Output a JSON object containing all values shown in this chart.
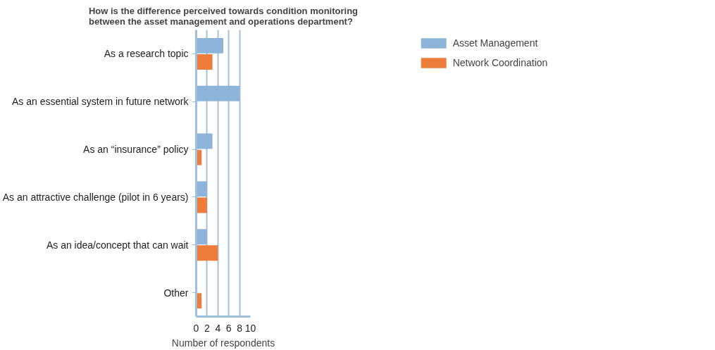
{
  "chart_data": {
    "type": "bar",
    "orientation": "horizontal",
    "title": "How is the difference perceived towards condition monitoring\nbetween the asset management and operations department?",
    "xlabel": "Number of respondents",
    "categories": [
      "As a research topic",
      "As an essential system in future network",
      "As an “insurance” policy",
      "As an attractive challenge (pilot in 6 years)",
      "As an idea/concept that can wait",
      "Other"
    ],
    "series": [
      {
        "name": "Asset Management",
        "color": "#8fb4d9",
        "values": [
          5,
          8,
          3,
          2,
          2,
          null
        ]
      },
      {
        "name": "Network Coordination",
        "color": "#ed7d3b",
        "values": [
          3,
          null,
          1,
          2,
          4,
          1
        ]
      }
    ],
    "xlim": [
      0,
      10
    ],
    "xticks": [
      0,
      2,
      4,
      6,
      8,
      10
    ],
    "grid": "x",
    "legend": "top right"
  }
}
